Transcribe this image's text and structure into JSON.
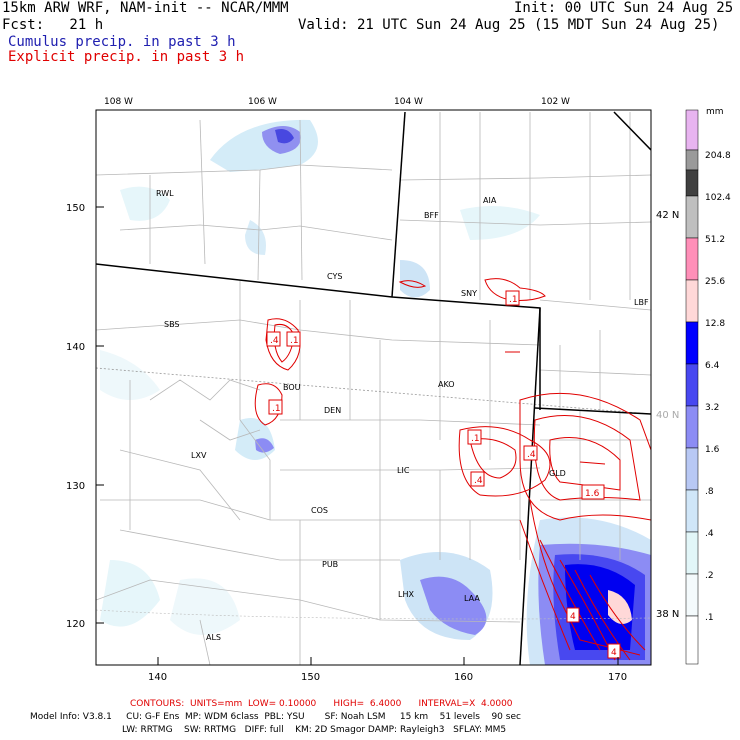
{
  "header": {
    "model": "15km ARW WRF, NAM-init -- NCAR/MMM",
    "init": "Init: 00 UTC Sun 24 Aug 25",
    "fcst": "Fcst:   21 h",
    "valid": "Valid: 21 UTC Sun 24 Aug 25 (15 MDT Sun 24 Aug 25)",
    "legend1": "Cumulus precip. in past 3 h",
    "legend2": "Explicit precip. in past 3 h"
  },
  "colors": {
    "legend1": "#2020b0",
    "legend2": "#e00000",
    "contour": "#e00000"
  },
  "map": {
    "lon_labels": [
      "108 W",
      "106 W",
      "104 W",
      "102 W"
    ],
    "lat_labels": [
      "42 N",
      "40 N",
      "38 N"
    ],
    "y_ticks": [
      "150",
      "140",
      "130",
      "120"
    ],
    "x_ticks": [
      "140",
      "150",
      "160",
      "170"
    ],
    "stations": [
      "RWL",
      "BFF",
      "AIA",
      "CYS",
      "SNY",
      "LBF",
      "SBS",
      "BOU",
      "DEN",
      "AKO",
      "LXV",
      "LIC",
      "GLD",
      "COS",
      "PUB",
      "LHX",
      "LAA",
      "ALS"
    ],
    "contour_labels": [
      ".4",
      ".1",
      ".1",
      ".1",
      ".1",
      ".4",
      ".4",
      "1.6",
      "4",
      "4"
    ]
  },
  "colorbar": {
    "unit": "mm",
    "levels": [
      "204.8",
      "102.4",
      "51.2",
      "25.6",
      "12.8",
      "6.4",
      "3.2",
      "1.6",
      ".8",
      ".4",
      ".2",
      ".1"
    ],
    "colors": [
      "#e8b4f0",
      "#9a9a9a",
      "#404040",
      "#bfbfbf",
      "#ff8fb8",
      "#ffd8d8",
      "#0000ff",
      "#4848f0",
      "#8c8cf4",
      "#b8c8f4",
      "#d0e6f8",
      "#e2f6f8",
      "#f4fafc",
      "#ffffff"
    ]
  },
  "footer": {
    "contours": "CONTOURS:  UNITS=mm  LOW= 0.10000      HIGH=  6.4000      INTERVAL=X  4.0000",
    "info1": "Model Info: V3.8.1     CU: G-F Ens  MP: WDM 6class  PBL: YSU       SF: Noah LSM     15 km    51 levels    90 sec",
    "info2": "LW: RRTMG    SW: RRTMG   DIFF: full    KM: 2D Smagor DAMP: Rayleigh3   SFLAY: MM5"
  }
}
